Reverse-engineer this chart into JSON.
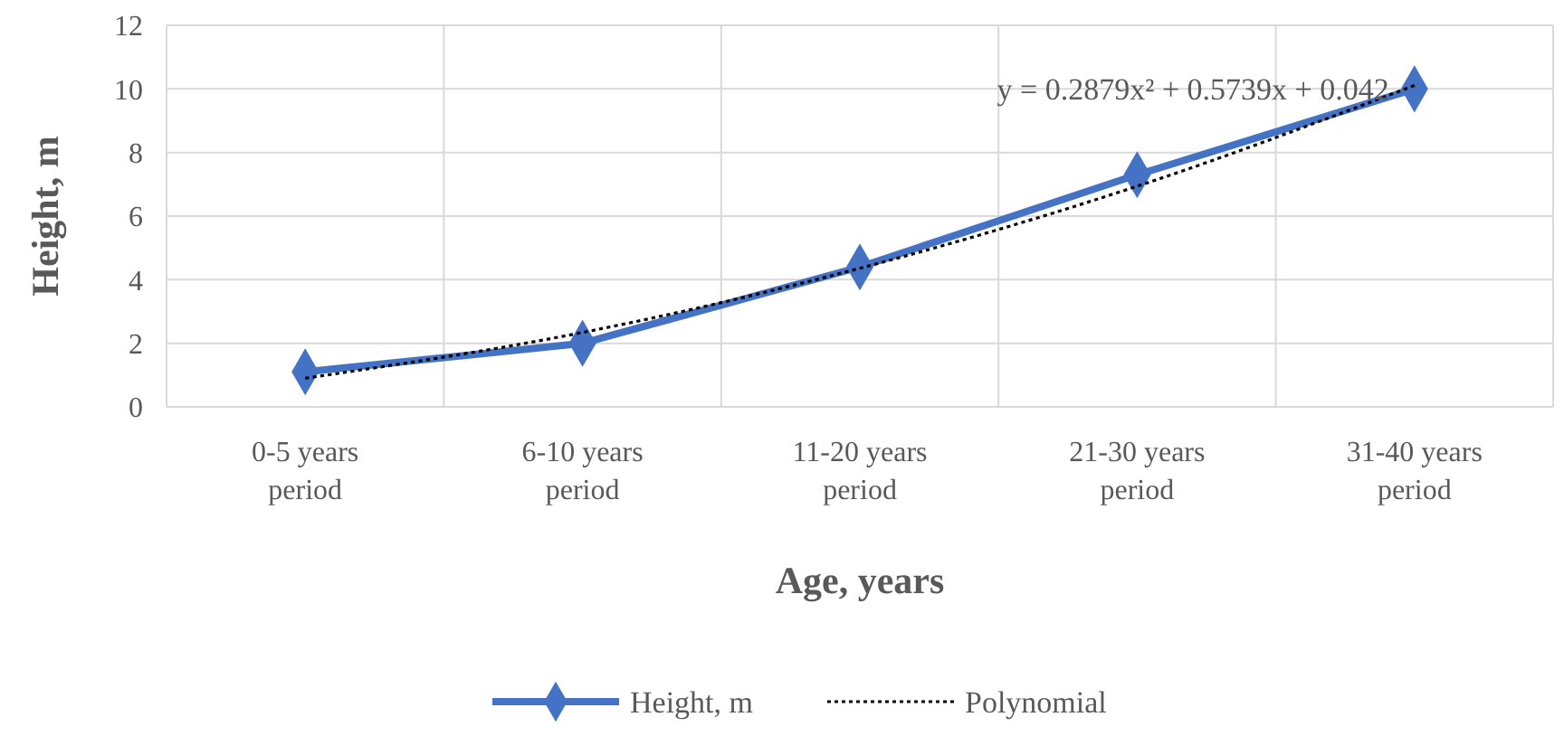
{
  "chart_data": {
    "type": "line",
    "xlabel": "Age, years",
    "ylabel": "Height, m",
    "categories": [
      "0-5 years period",
      "6-10 years period",
      "11-20 years period",
      "21-30 years period",
      "31-40 years period"
    ],
    "series": [
      {
        "name": "Height, m",
        "color": "#4472c4",
        "values": [
          1.1,
          2.0,
          4.4,
          7.3,
          10.0
        ],
        "marker": "diamond",
        "line_style": "solid"
      },
      {
        "name": "Polynomial",
        "type": "line",
        "color": "#000000",
        "values": [
          0.9,
          2.34,
          4.36,
          6.94,
          10.11
        ],
        "marker": "none",
        "line_style": "dotted"
      }
    ],
    "ylim": [
      0,
      12
    ],
    "yticks": [
      0,
      2,
      4,
      6,
      8,
      10,
      12
    ],
    "grid": true,
    "legend": "bottom",
    "annotations": [
      {
        "text": "y = 0.2879x² + 0.5739x + 0.042",
        "x": "31-40 years period",
        "y": 10
      }
    ]
  }
}
